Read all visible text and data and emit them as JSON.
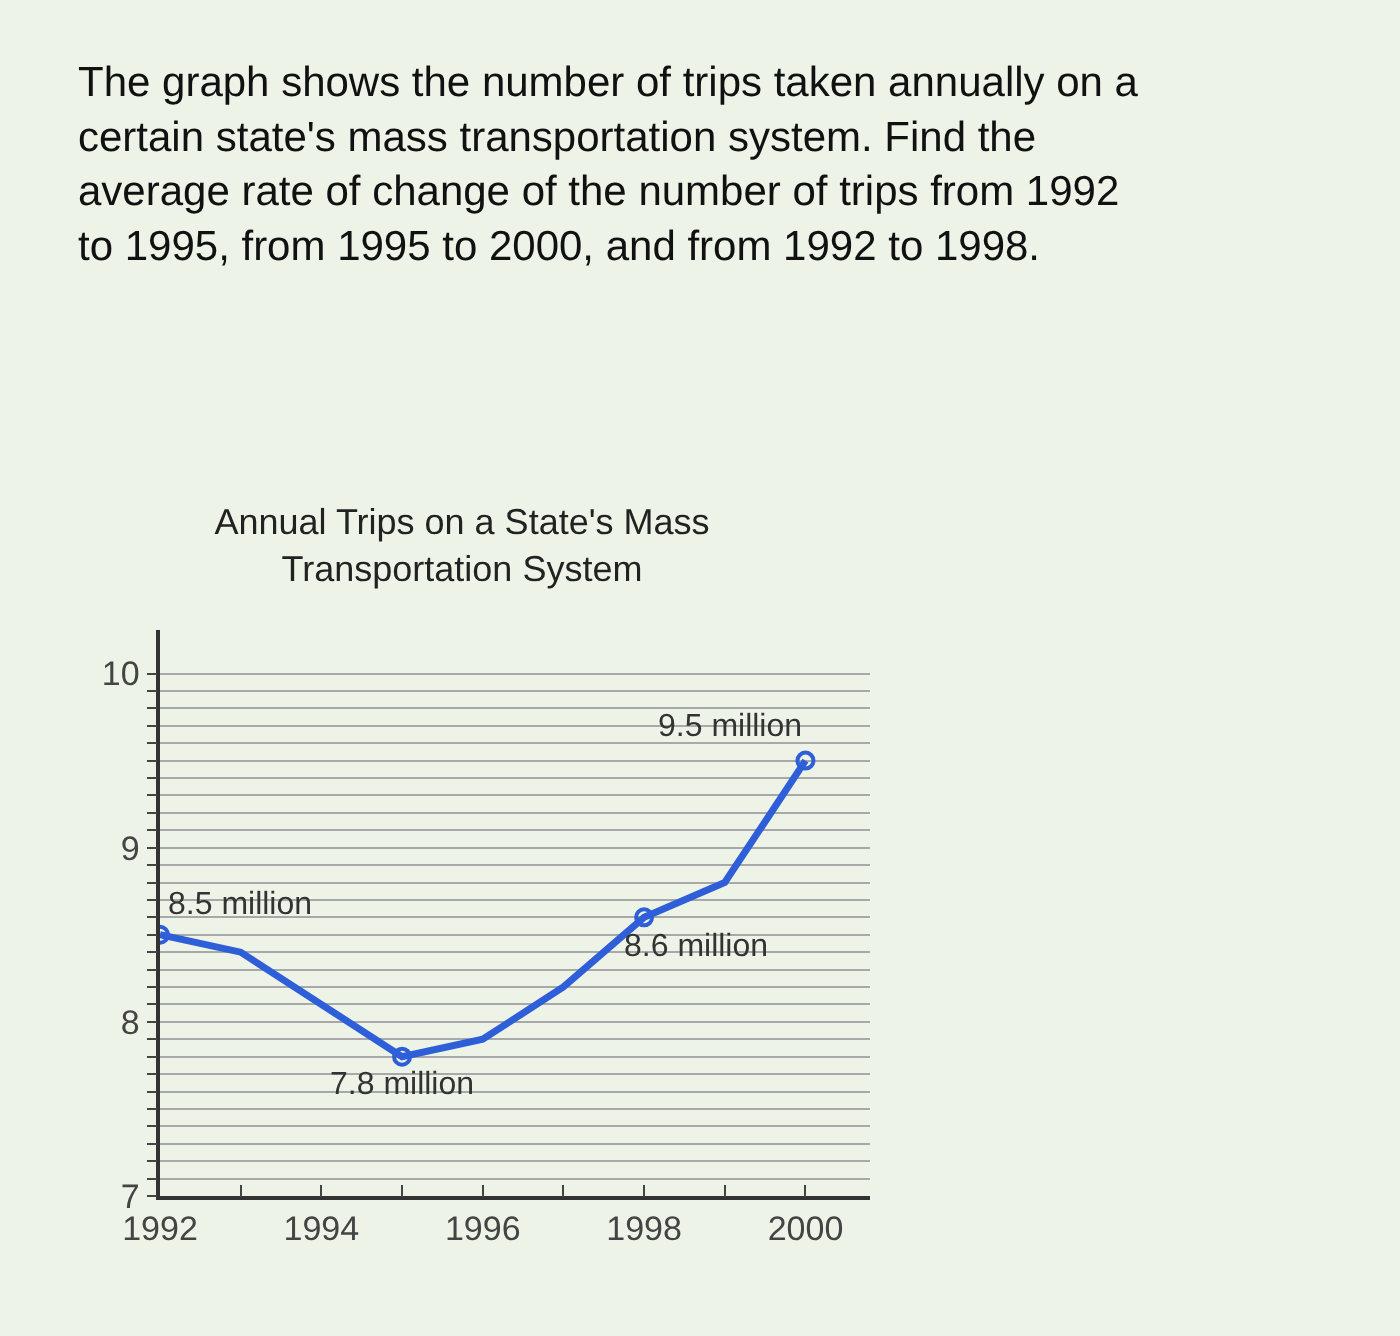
{
  "chart_data": {
    "type": "line",
    "title": "Annual Trips on a State's Mass\nTransportation System",
    "annotations": [
      "The graph shows the number of trips taken annually on a\ncertain state's mass transportation system. Find the\naverage rate of change of the number of trips from 1992\nto 1995, from 1995 to 2000, and from 1992 to 1998.",
      {
        "text": "8.5 million",
        "x": 1992,
        "y": 8.5
      },
      {
        "text": "7.8 million",
        "x": 1995,
        "y": 7.8
      },
      {
        "text": "8.6 million",
        "x": 1998,
        "y": 8.6
      },
      {
        "text": "9.5 million",
        "x": 2000,
        "y": 9.5
      }
    ],
    "series": [
      {
        "color": "#2f5fd8",
        "marker": "none",
        "x": [
          1992,
          1993,
          1995,
          1996,
          1997,
          1998,
          1999,
          2000
        ],
        "values": [
          8.5,
          8.4,
          7.8,
          7.9,
          8.2,
          8.6,
          8.8,
          9.5
        ]
      },
      {
        "type": "scatter",
        "color": "#2f5fd8",
        "marker": "circle",
        "x": [
          1992,
          1995,
          1998,
          2000
        ],
        "values": [
          8.5,
          7.8,
          8.6,
          9.5
        ]
      }
    ],
    "xlim": [
      1992,
      2000.8
    ],
    "xticks": [
      1992,
      {
        "value": 1993,
        "label": null
      },
      1994,
      {
        "value": 1995,
        "label": null
      },
      1996,
      {
        "value": 1997,
        "label": null
      },
      1998,
      {
        "value": 1999,
        "label": null
      },
      2000
    ],
    "ylim": [
      7,
      10.25
    ],
    "yticks": [
      7,
      {
        "value": 7.1,
        "label": null
      },
      {
        "value": 7.2,
        "label": null
      },
      {
        "value": 7.3,
        "label": null
      },
      {
        "value": 7.4,
        "label": null
      },
      {
        "value": 7.5,
        "label": null
      },
      {
        "value": 7.6,
        "label": null
      },
      {
        "value": 7.7,
        "label": null
      },
      {
        "value": 7.8,
        "label": null
      },
      {
        "value": 7.9,
        "label": null
      },
      8,
      {
        "value": 8.1,
        "label": null
      },
      {
        "value": 8.2,
        "label": null
      },
      {
        "value": 8.3,
        "label": null
      },
      {
        "value": 8.4,
        "label": null
      },
      {
        "value": 8.5,
        "label": null
      },
      {
        "value": 8.6,
        "label": null
      },
      {
        "value": 8.7,
        "label": null
      },
      {
        "value": 8.8,
        "label": null
      },
      {
        "value": 8.9,
        "label": null
      },
      9,
      {
        "value": 9.1,
        "label": null
      },
      {
        "value": 9.2,
        "label": null
      },
      {
        "value": 9.3,
        "label": null
      },
      {
        "value": 9.4,
        "label": null
      },
      {
        "value": 9.5,
        "label": null
      },
      {
        "value": 9.6,
        "label": null
      },
      {
        "value": 9.7,
        "label": null
      },
      {
        "value": 9.8,
        "label": null
      },
      {
        "value": 9.9,
        "label": null
      },
      10
    ],
    "grid": "y"
  }
}
